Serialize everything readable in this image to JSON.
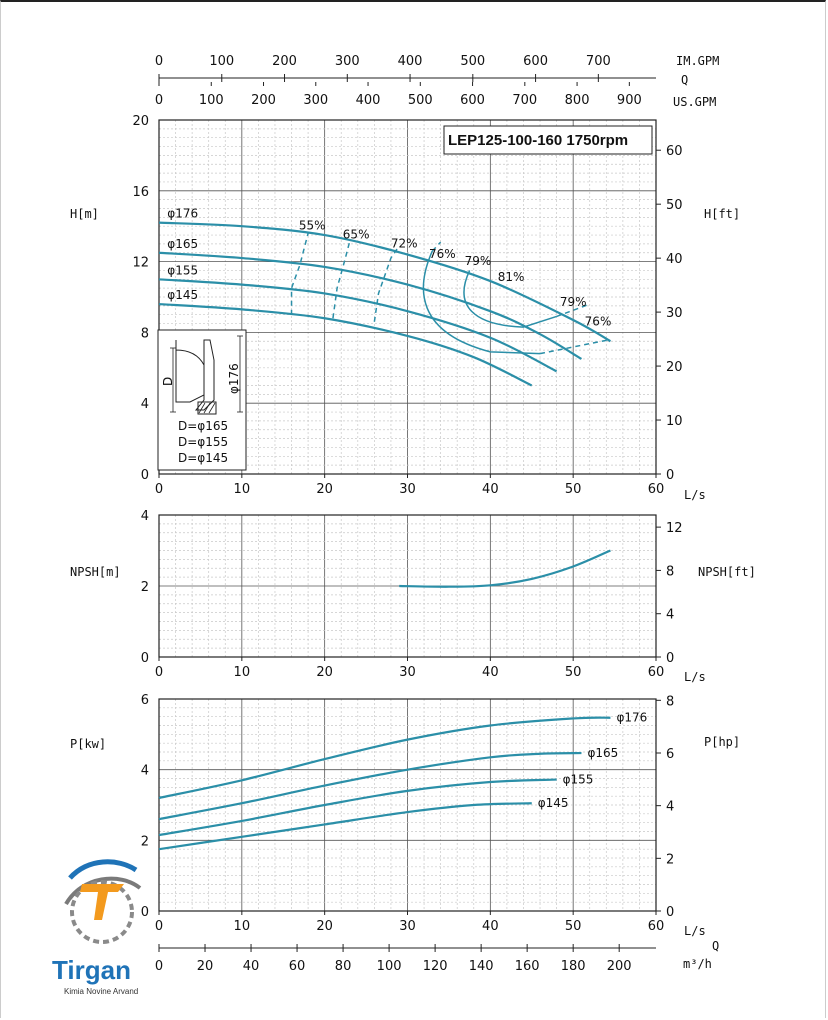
{
  "chart_data": [
    {
      "type": "line",
      "panel": "head",
      "title": "LEP125-100-160 1750rpm",
      "xlabel": "L/s",
      "ylabel_left": "H[m]",
      "ylabel_right": "H[ft]",
      "xlim": [
        0,
        60
      ],
      "ylim": [
        0,
        20
      ],
      "ylim_right": [
        0,
        65.6
      ],
      "x_ticks": [
        "0",
        "10",
        "20",
        "30",
        "40",
        "50",
        "60"
      ],
      "y_ticks": [
        "0",
        "4",
        "8",
        "12",
        "16",
        "20"
      ],
      "y_right_ticks": [
        "0",
        "10",
        "20",
        "30",
        "40",
        "50",
        "60"
      ],
      "top_axis_im_gpm": {
        "label": "IM.GPM",
        "ticks": [
          "0",
          "100",
          "200",
          "300",
          "400",
          "500",
          "600",
          "700"
        ],
        "q_label": "Q"
      },
      "top_axis_us_gpm": {
        "label": "US.GPM",
        "ticks": [
          "0",
          "100",
          "200",
          "300",
          "400",
          "500",
          "600",
          "700",
          "800",
          "900"
        ]
      },
      "series": [
        {
          "name": "φ176",
          "points": [
            [
              0,
              14.2
            ],
            [
              10,
              14.0
            ],
            [
              20,
              13.5
            ],
            [
              30,
              12.4
            ],
            [
              40,
              10.9
            ],
            [
              50,
              8.7
            ],
            [
              54.5,
              7.5
            ]
          ]
        },
        {
          "name": "φ165",
          "points": [
            [
              0,
              12.5
            ],
            [
              10,
              12.2
            ],
            [
              20,
              11.7
            ],
            [
              30,
              10.7
            ],
            [
              40,
              9.2
            ],
            [
              46,
              7.9
            ],
            [
              51,
              6.5
            ]
          ]
        },
        {
          "name": "φ155",
          "points": [
            [
              0,
              11.0
            ],
            [
              10,
              10.7
            ],
            [
              20,
              10.2
            ],
            [
              30,
              9.2
            ],
            [
              40,
              7.7
            ],
            [
              48,
              5.8
            ]
          ]
        },
        {
          "name": "φ145",
          "points": [
            [
              0,
              9.6
            ],
            [
              10,
              9.3
            ],
            [
              20,
              8.8
            ],
            [
              30,
              7.8
            ],
            [
              38,
              6.6
            ],
            [
              45,
              5.0
            ]
          ]
        }
      ],
      "efficiency_labels": [
        "55%",
        "65%",
        "72%",
        "76%",
        "79%",
        "81%",
        "79%",
        "76%"
      ],
      "impeller_diagram": {
        "letter_d": "D",
        "dimension": "φ176",
        "lines": [
          "D=φ165",
          "D=φ155",
          "D=φ145"
        ]
      },
      "grid": true
    },
    {
      "type": "line",
      "panel": "npsh",
      "xlabel": "L/s",
      "ylabel_left": "NPSH[m]",
      "ylabel_right": "NPSH[ft]",
      "xlim": [
        0,
        60
      ],
      "ylim": [
        0,
        4
      ],
      "ylim_right": [
        0,
        13.12
      ],
      "x_ticks": [
        "0",
        "10",
        "20",
        "30",
        "40",
        "50",
        "60"
      ],
      "y_ticks": [
        "0",
        "2",
        "4"
      ],
      "y_right_ticks": [
        "0",
        "4",
        "8",
        "12"
      ],
      "series": [
        {
          "points": [
            [
              29,
              2.0
            ],
            [
              35,
              1.98
            ],
            [
              40,
              2.02
            ],
            [
              45,
              2.2
            ],
            [
              50,
              2.55
            ],
            [
              54.5,
              3.0
            ]
          ]
        }
      ],
      "grid": true
    },
    {
      "type": "line",
      "panel": "power",
      "xlabel": "L/s",
      "ylabel_left": "P[kw]",
      "ylabel_right": "P[hp]",
      "xlim": [
        0,
        60
      ],
      "ylim": [
        0,
        6
      ],
      "ylim_right": [
        0,
        8.05
      ],
      "x_ticks": [
        "0",
        "10",
        "20",
        "30",
        "40",
        "50",
        "60"
      ],
      "y_ticks": [
        "0",
        "2",
        "4",
        "6"
      ],
      "y_right_ticks": [
        "0",
        "2",
        "4",
        "6",
        "8"
      ],
      "bottom_axis_m3h": {
        "label_q": "Q",
        "label": "m³/h",
        "ticks": [
          "0",
          "20",
          "40",
          "60",
          "80",
          "100",
          "120",
          "140",
          "160",
          "180",
          "200"
        ]
      },
      "series": [
        {
          "name": "φ176",
          "points": [
            [
              0,
              3.2
            ],
            [
              10,
              3.7
            ],
            [
              20,
              4.3
            ],
            [
              30,
              4.85
            ],
            [
              40,
              5.25
            ],
            [
              50,
              5.45
            ],
            [
              54.5,
              5.47
            ]
          ]
        },
        {
          "name": "φ165",
          "points": [
            [
              0,
              2.6
            ],
            [
              10,
              3.05
            ],
            [
              20,
              3.55
            ],
            [
              30,
              4.0
            ],
            [
              40,
              4.35
            ],
            [
              46,
              4.45
            ],
            [
              51,
              4.47
            ]
          ]
        },
        {
          "name": "φ155",
          "points": [
            [
              0,
              2.15
            ],
            [
              10,
              2.55
            ],
            [
              20,
              3.0
            ],
            [
              30,
              3.4
            ],
            [
              40,
              3.65
            ],
            [
              48,
              3.72
            ]
          ]
        },
        {
          "name": "φ145",
          "points": [
            [
              0,
              1.75
            ],
            [
              10,
              2.1
            ],
            [
              20,
              2.45
            ],
            [
              30,
              2.8
            ],
            [
              38,
              3.0
            ],
            [
              45,
              3.05
            ]
          ]
        }
      ],
      "grid": true
    }
  ],
  "logo": {
    "brand": "Tirgan",
    "tagline": "Kimia Novine Arvand",
    "colors": {
      "blue": "#1f73b7",
      "orange": "#f39a1e",
      "gray": "#7a7a7a"
    }
  },
  "colors": {
    "curve": "#2b8fa8",
    "grid_major": "#555555",
    "grid_minor": "#c8c8c8"
  }
}
